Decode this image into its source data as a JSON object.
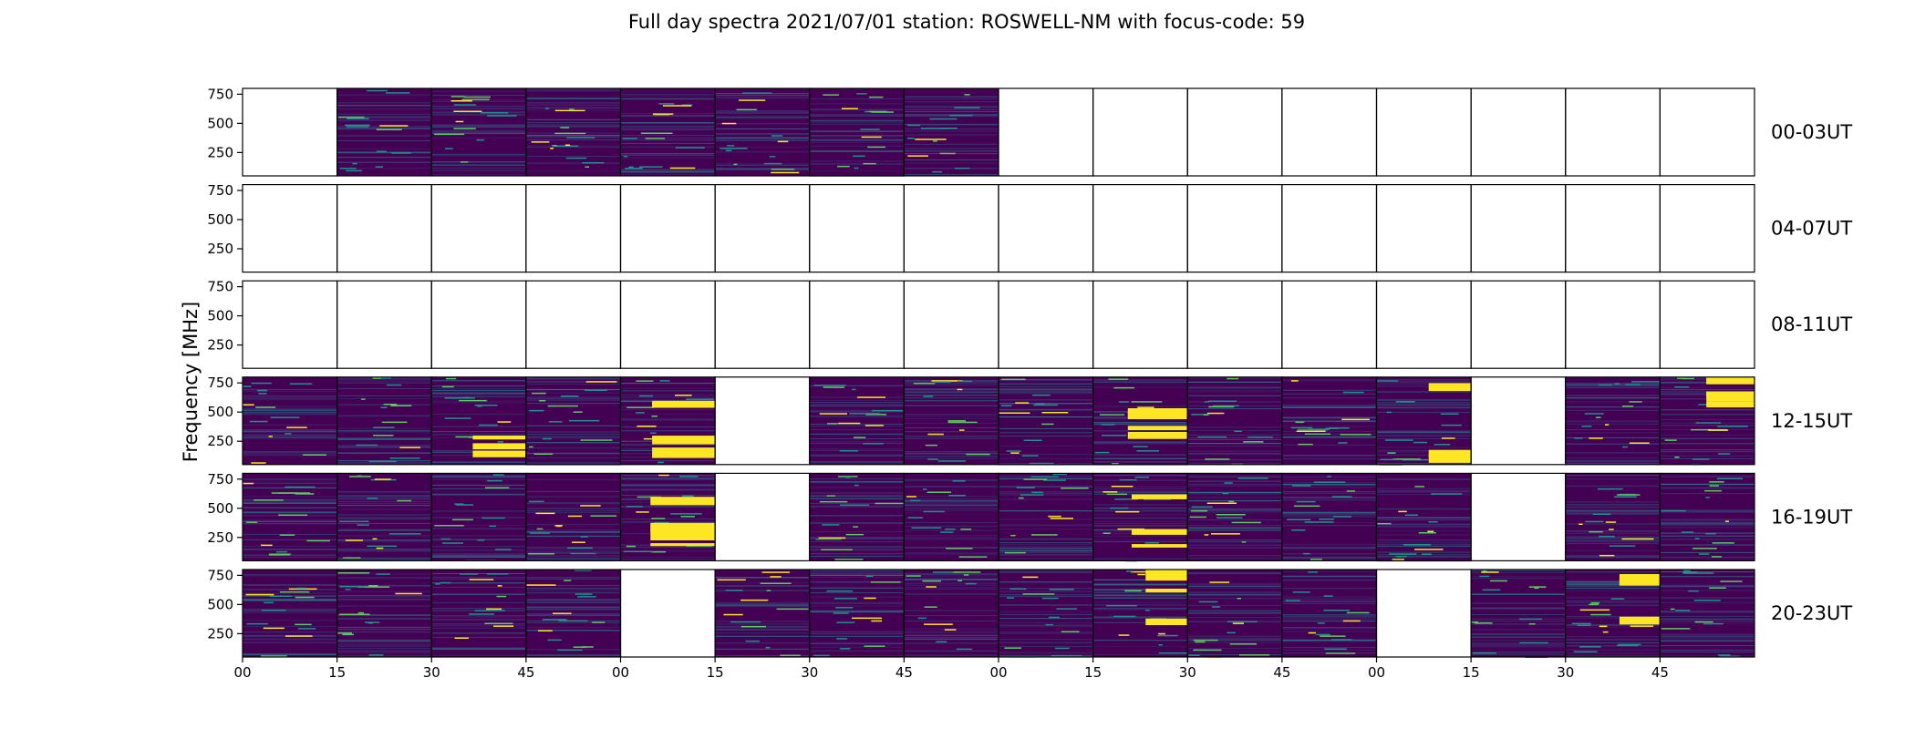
{
  "chart_data": {
    "type": "heatmap",
    "title": "Full day spectra 2021/07/01 station: ROSWELL-NM with focus-code: 59",
    "ylabel": "Frequency [MHz]",
    "xlabel": "",
    "ylim": [
      50,
      800
    ],
    "yticks": [
      250,
      500,
      750
    ],
    "xtick_labels": [
      "00",
      "15",
      "30",
      "45",
      "00",
      "15",
      "30",
      "45",
      "00",
      "15",
      "30",
      "45",
      "00",
      "15",
      "30",
      "45"
    ],
    "colormap": [
      "#440154",
      "#3b528b",
      "#21918c",
      "#5ec962",
      "#fde725"
    ],
    "rows": [
      {
        "label": "00-03UT",
        "panels": [
          0,
          1,
          1,
          1,
          1,
          1,
          1,
          1,
          0,
          0,
          0,
          0,
          0,
          0,
          0,
          0
        ],
        "bright": [
          0,
          0,
          0,
          0,
          0,
          0,
          0,
          0,
          0,
          0,
          0,
          0,
          0,
          0,
          0,
          0
        ]
      },
      {
        "label": "04-07UT",
        "panels": [
          0,
          0,
          0,
          0,
          0,
          0,
          0,
          0,
          0,
          0,
          0,
          0,
          0,
          0,
          0,
          0
        ],
        "bright": [
          0,
          0,
          0,
          0,
          0,
          0,
          0,
          0,
          0,
          0,
          0,
          0,
          0,
          0,
          0,
          0
        ]
      },
      {
        "label": "08-11UT",
        "panels": [
          0,
          0,
          0,
          0,
          0,
          0,
          0,
          0,
          0,
          0,
          0,
          0,
          0,
          0,
          0,
          0
        ],
        "bright": [
          0,
          0,
          0,
          0,
          0,
          0,
          0,
          0,
          0,
          0,
          0,
          0,
          0,
          0,
          0,
          0
        ]
      },
      {
        "label": "12-15UT",
        "panels": [
          1,
          1,
          1,
          1,
          1,
          0,
          1,
          1,
          1,
          1,
          1,
          1,
          1,
          0,
          1,
          1
        ],
        "bright": [
          0,
          0,
          1,
          0,
          1,
          0,
          0,
          0,
          0,
          1,
          0,
          0,
          1,
          0,
          0,
          1
        ]
      },
      {
        "label": "16-19UT",
        "panels": [
          1,
          1,
          1,
          1,
          1,
          0,
          1,
          1,
          1,
          1,
          1,
          1,
          1,
          0,
          1,
          1
        ],
        "bright": [
          0,
          0,
          0,
          0,
          1,
          0,
          0,
          0,
          0,
          1,
          0,
          0,
          0,
          0,
          0,
          0
        ]
      },
      {
        "label": "20-23UT",
        "panels": [
          1,
          1,
          1,
          1,
          0,
          1,
          1,
          1,
          1,
          1,
          1,
          1,
          0,
          1,
          1,
          1
        ],
        "bright": [
          0,
          0,
          0,
          0,
          0,
          0,
          0,
          0,
          0,
          1,
          0,
          0,
          0,
          0,
          1,
          0
        ]
      }
    ]
  }
}
